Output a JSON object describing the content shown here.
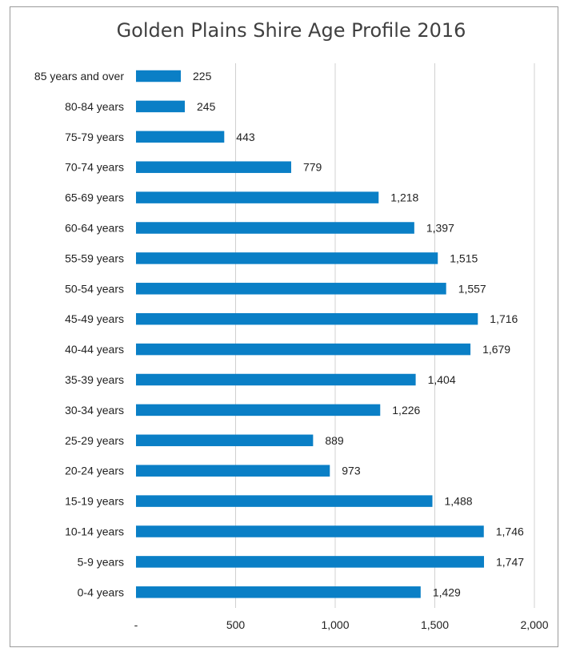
{
  "chart_data": {
    "type": "bar",
    "orientation": "horizontal",
    "title": "Golden Plains Shire Age Profile 2016",
    "categories": [
      "85 years and over",
      "80-84 years",
      "75-79 years",
      "70-74 years",
      "65-69 years",
      "60-64 years",
      "55-59 years",
      "50-54 years",
      "45-49 years",
      "40-44 years",
      "35-39 years",
      "30-34 years",
      "25-29 years",
      "20-24 years",
      "15-19 years",
      "10-14 years",
      "5-9 years",
      "0-4 years"
    ],
    "values": [
      225,
      245,
      443,
      779,
      1218,
      1397,
      1515,
      1557,
      1716,
      1679,
      1404,
      1226,
      889,
      973,
      1488,
      1746,
      1747,
      1429
    ],
    "value_labels": [
      "225",
      "245",
      "443",
      "779",
      "1,218",
      "1,397",
      "1,515",
      "1,557",
      "1,716",
      "1,679",
      "1,404",
      "1,226",
      "889",
      "973",
      "1,488",
      "1,746",
      "1,747",
      "1,429"
    ],
    "xlim": [
      0,
      2000
    ],
    "xticks": [
      0,
      500,
      1000,
      1500,
      2000
    ],
    "xtick_labels": [
      "-",
      "500",
      "1,000",
      "1,500",
      "2,000"
    ],
    "grid": true,
    "legend": "none",
    "bar_color": "#0a7fc6"
  }
}
